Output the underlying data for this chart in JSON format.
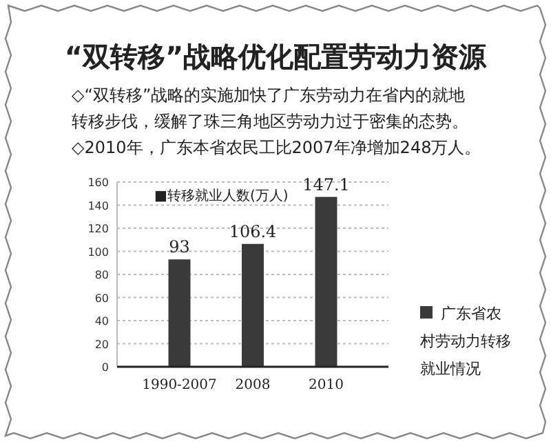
{
  "chart_data": {
    "type": "bar",
    "title": "“双转移”战略优化配置劳动力资源",
    "subtitle": "◇“双转移”战略的实施加快了广东劳动力在省内的就地转移步伐，缓解了珠三角地区劳动力过于密集的态势。",
    "annotations": [
      "◇2010年，广东本省农民工比2007年净增加248万人。",
      "■转移就业人数(万人)"
    ],
    "categories": [
      "1990-2007",
      "2008",
      "2010"
    ],
    "series": [
      {
        "name": "广东省农村劳动力转移就业情况",
        "color": "#3a3a3a",
        "values": [
          93,
          106.4,
          147.1
        ]
      }
    ],
    "ylim": [
      0,
      160
    ],
    "yticks": [
      0,
      20,
      40,
      60,
      80,
      100,
      120,
      140,
      160
    ],
    "grid": "y",
    "legend": "right",
    "data_labels": true
  }
}
